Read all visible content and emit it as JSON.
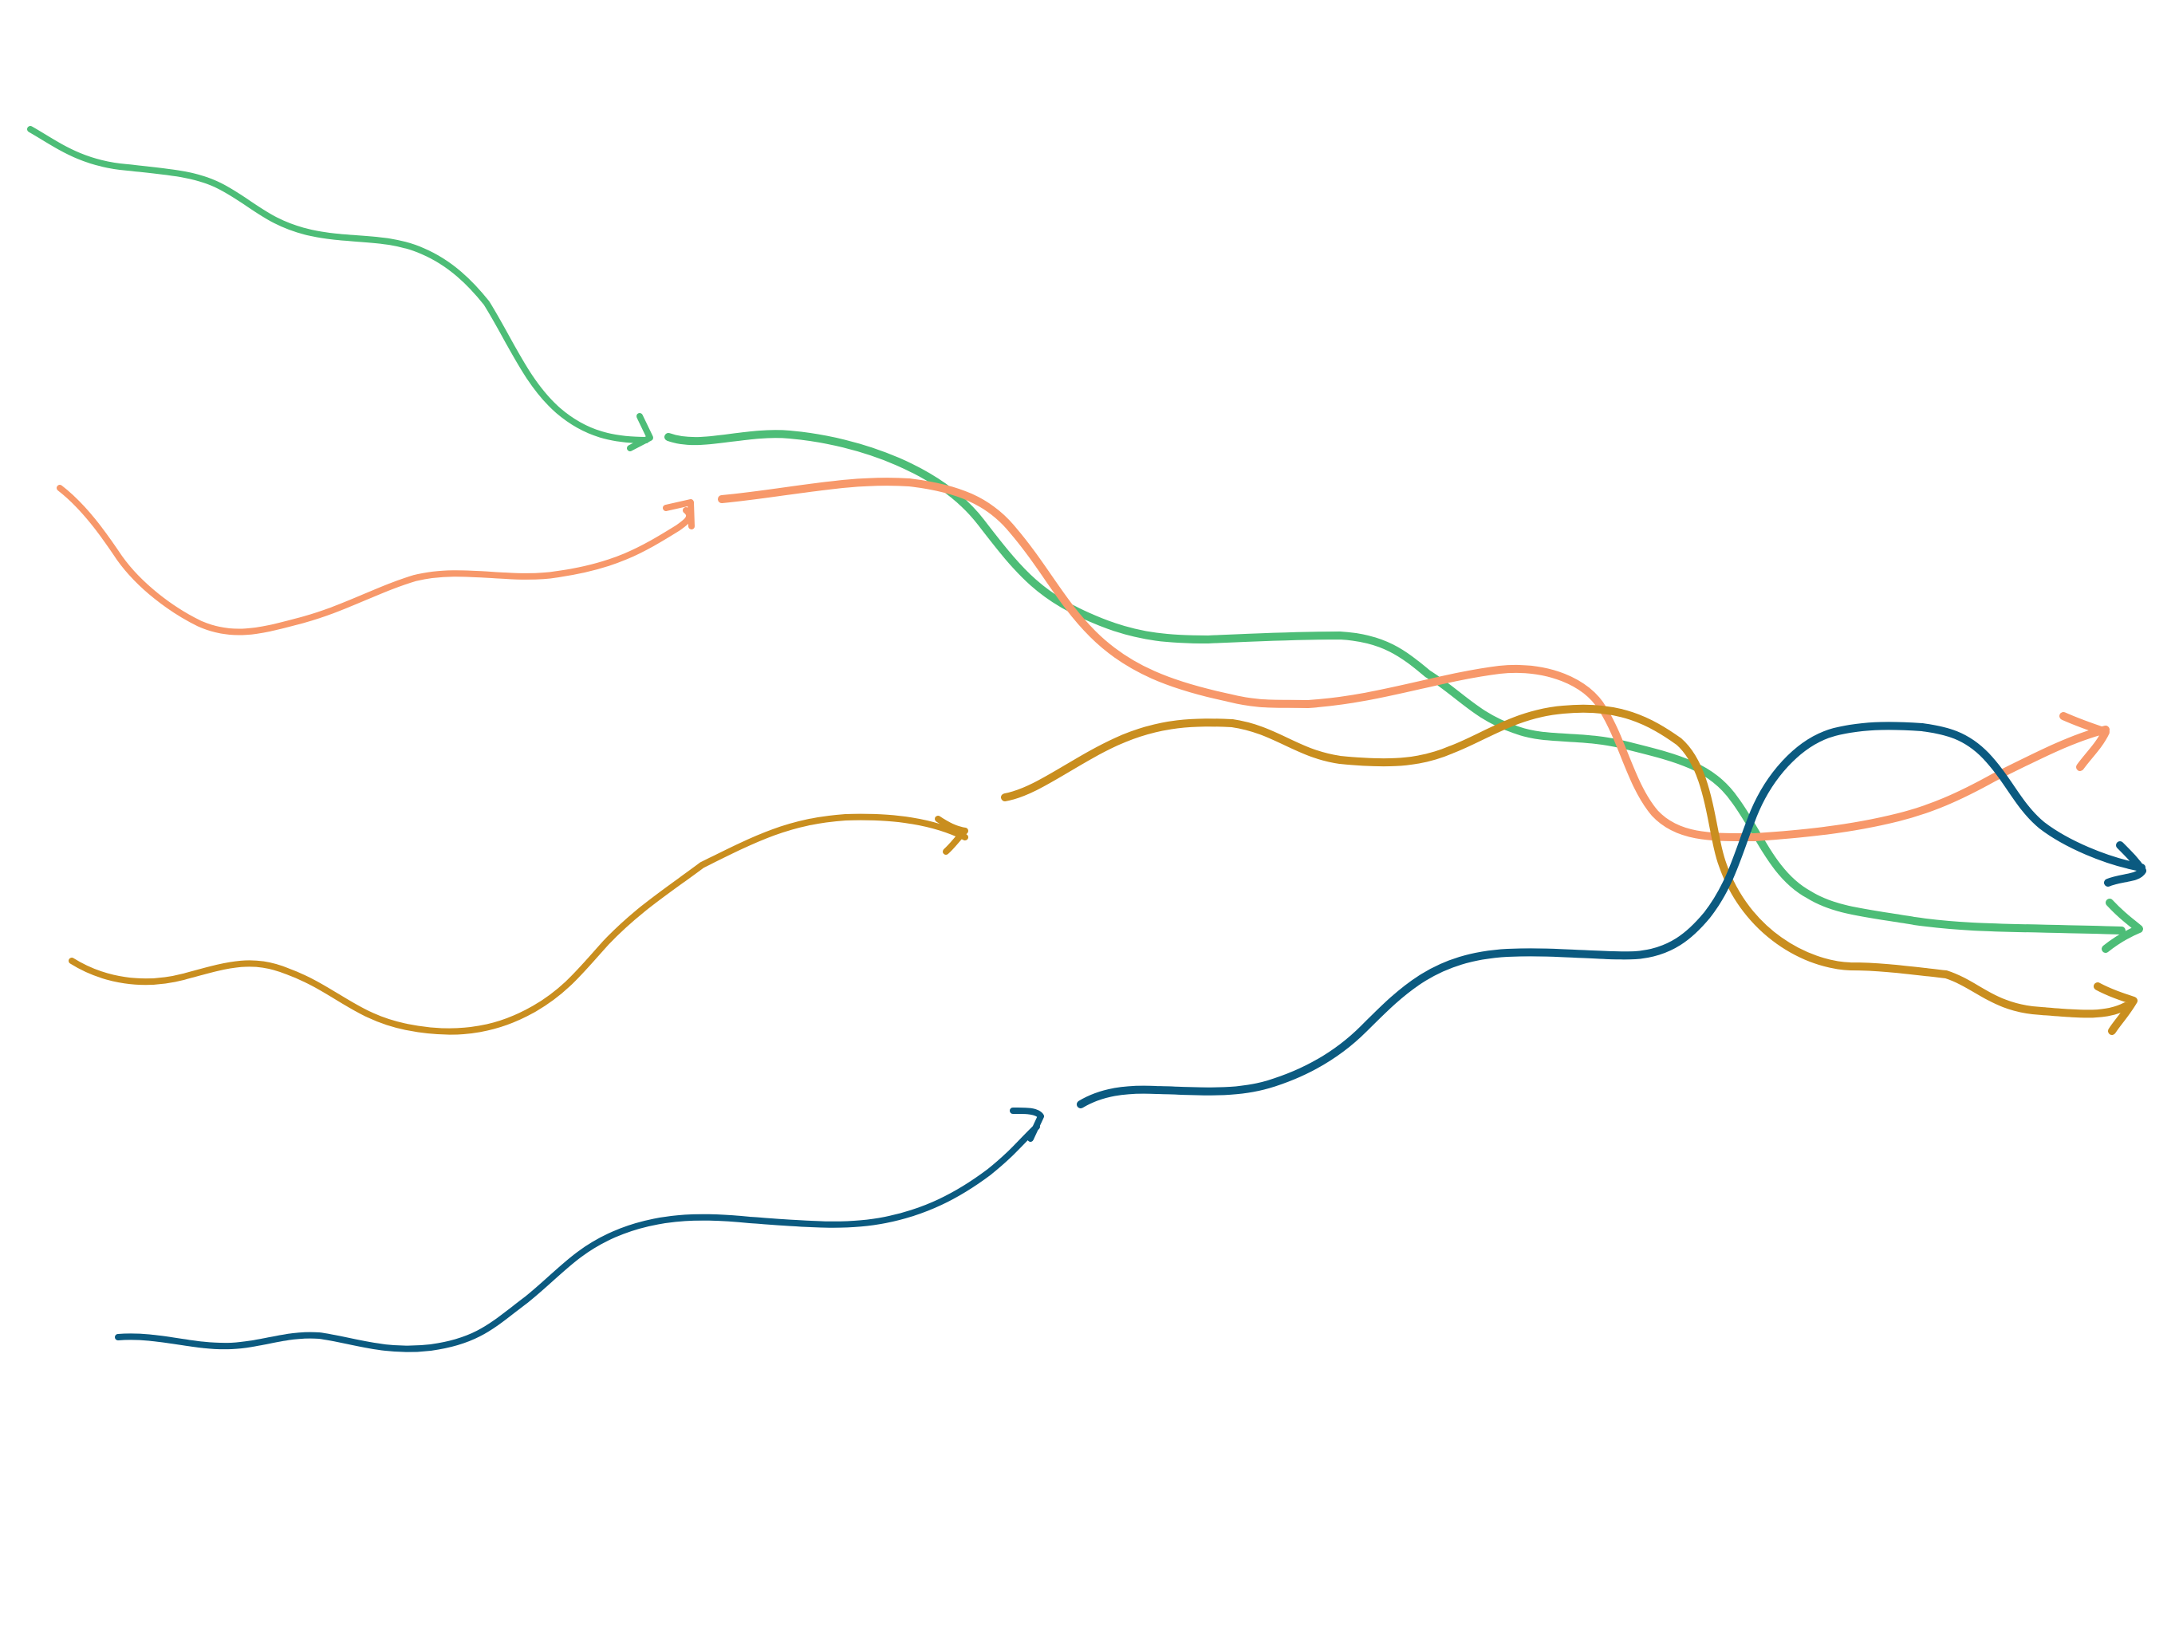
{
  "diagram": {
    "kind": "hand-drawn flow arrows",
    "colors": {
      "green": "#4dbd77",
      "salmon": "#f7986a",
      "gold": "#c98e1f",
      "navy": "#0b5a80"
    },
    "arrow_groups": [
      {
        "name": "green",
        "color_key": "green",
        "segments": 2
      },
      {
        "name": "salmon",
        "color_key": "salmon",
        "segments": 2
      },
      {
        "name": "gold",
        "color_key": "gold",
        "segments": 2
      },
      {
        "name": "navy",
        "color_key": "navy",
        "segments": 2
      }
    ]
  }
}
